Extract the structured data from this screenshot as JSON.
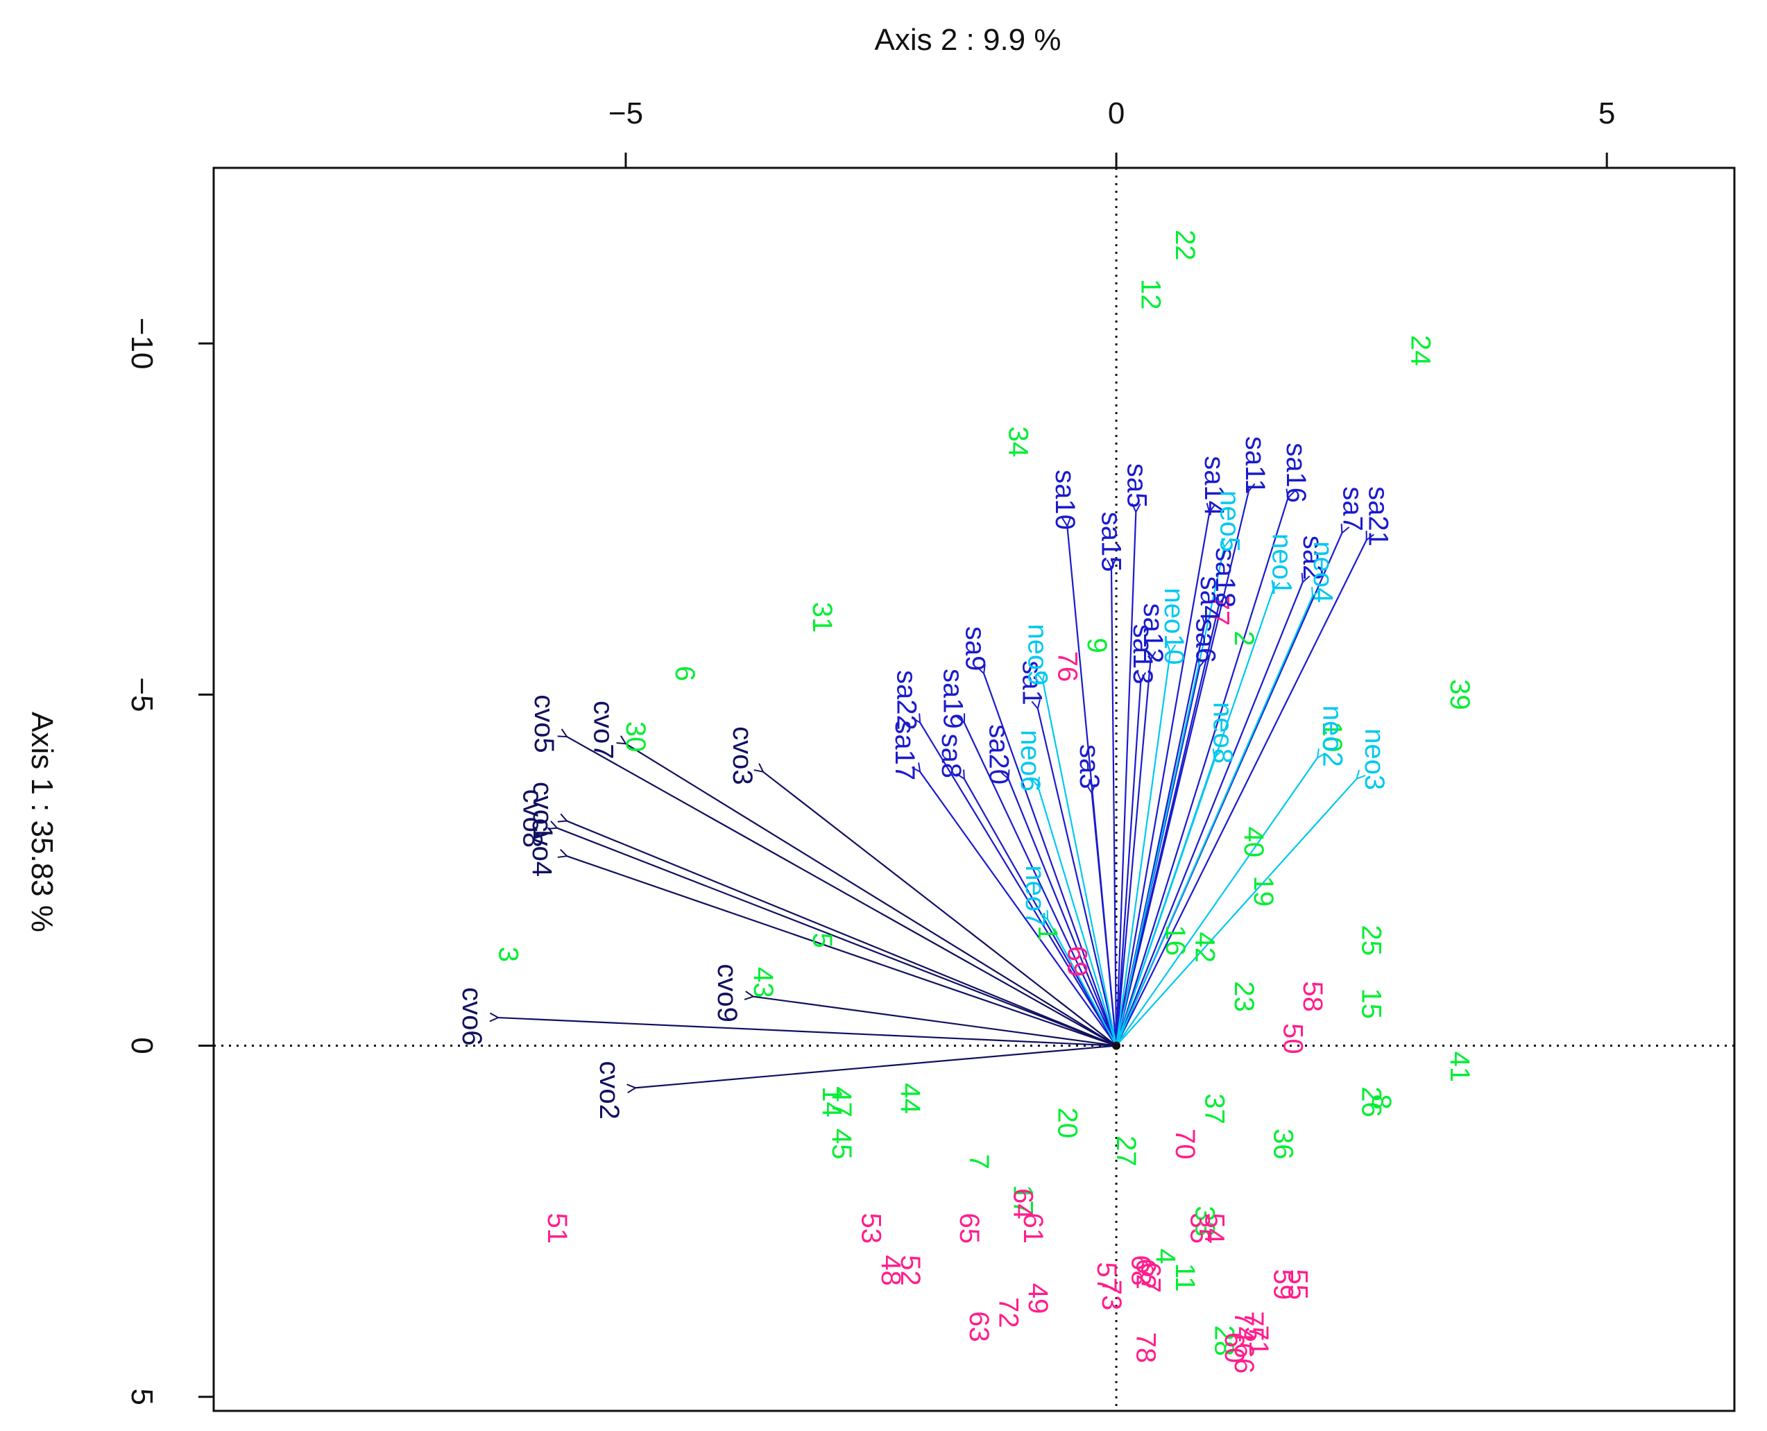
{
  "chart_data": {
    "type": "scatter",
    "subtype": "pca-biplot",
    "x_axis_title": "Axis 2 : 9.9 %",
    "y_axis_title": "Axis 1 : 35.83 %",
    "x_ticks": [
      {
        "value": -5,
        "label": "−5"
      },
      {
        "value": 0,
        "label": "0"
      },
      {
        "value": 5,
        "label": "5"
      }
    ],
    "y_ticks": [
      {
        "value": -10,
        "label": "−10"
      },
      {
        "value": -5,
        "label": "−5"
      },
      {
        "value": 0,
        "label": "0"
      },
      {
        "value": 5,
        "label": "5"
      }
    ],
    "xlim": [
      -9.2,
      6.3
    ],
    "ylim": [
      -12.5,
      5.2
    ],
    "y_inverted": true,
    "reference_lines": [
      {
        "axis": "x",
        "value": 0,
        "style": "dotted"
      },
      {
        "axis": "y",
        "value": 0,
        "style": "dotted"
      }
    ],
    "colors": {
      "group_green": "#00ee33",
      "group_pink": "#ff1e8c",
      "vector_cvo": "#101060",
      "vector_sa": "#1a1acc",
      "vector_neo": "#00c8f0",
      "axis": "#111111"
    },
    "points": [
      {
        "label": "22",
        "x": 0.7,
        "y": -11.4,
        "group": "green"
      },
      {
        "label": "12",
        "x": 0.35,
        "y": -10.7,
        "group": "green"
      },
      {
        "label": "24",
        "x": 3.1,
        "y": -9.9,
        "group": "green"
      },
      {
        "label": "34",
        "x": -1.0,
        "y": -8.6,
        "group": "green"
      },
      {
        "label": "31",
        "x": -3.0,
        "y": -6.1,
        "group": "green"
      },
      {
        "label": "6",
        "x": -4.4,
        "y": -5.3,
        "group": "green"
      },
      {
        "label": "30",
        "x": -4.9,
        "y": -4.4,
        "group": "green"
      },
      {
        "label": "39",
        "x": 3.5,
        "y": -5.0,
        "group": "green"
      },
      {
        "label": "10",
        "x": 2.2,
        "y": -4.4,
        "group": "green"
      },
      {
        "label": "2",
        "x": 1.3,
        "y": -5.8,
        "group": "green"
      },
      {
        "label": "9",
        "x": -0.2,
        "y": -5.7,
        "group": "green"
      },
      {
        "label": "40",
        "x": 1.4,
        "y": -2.9,
        "group": "green"
      },
      {
        "label": "19",
        "x": 1.5,
        "y": -2.2,
        "group": "green"
      },
      {
        "label": "25",
        "x": 2.6,
        "y": -1.5,
        "group": "green"
      },
      {
        "label": "42",
        "x": 0.9,
        "y": -1.4,
        "group": "green"
      },
      {
        "label": "16",
        "x": 0.6,
        "y": -1.5,
        "group": "green"
      },
      {
        "label": "1",
        "x": -0.7,
        "y": -1.6,
        "group": "green"
      },
      {
        "label": "3",
        "x": -6.2,
        "y": -1.3,
        "group": "green"
      },
      {
        "label": "5",
        "x": -3.0,
        "y": -1.5,
        "group": "green"
      },
      {
        "label": "43",
        "x": -3.6,
        "y": -0.9,
        "group": "green"
      },
      {
        "label": "23",
        "x": 1.3,
        "y": -0.7,
        "group": "green"
      },
      {
        "label": "15",
        "x": 2.6,
        "y": -0.6,
        "group": "green"
      },
      {
        "label": "41",
        "x": 3.5,
        "y": 0.3,
        "group": "green"
      },
      {
        "label": "26",
        "x": 2.6,
        "y": 0.8,
        "group": "green"
      },
      {
        "label": "8",
        "x": 2.7,
        "y": 0.8,
        "group": "green"
      },
      {
        "label": "47",
        "x": -2.8,
        "y": 0.8,
        "group": "green"
      },
      {
        "label": "14",
        "x": -2.9,
        "y": 0.8,
        "group": "green"
      },
      {
        "label": "44",
        "x": -2.1,
        "y": 0.75,
        "group": "green"
      },
      {
        "label": "37",
        "x": 1.0,
        "y": 0.9,
        "group": "green"
      },
      {
        "label": "20",
        "x": -0.5,
        "y": 1.1,
        "group": "green"
      },
      {
        "label": "36",
        "x": 1.7,
        "y": 1.4,
        "group": "green"
      },
      {
        "label": "45",
        "x": -2.8,
        "y": 1.4,
        "group": "green"
      },
      {
        "label": "27",
        "x": 0.1,
        "y": 1.5,
        "group": "green"
      },
      {
        "label": "7",
        "x": -1.4,
        "y": 1.65,
        "group": "green"
      },
      {
        "label": "17",
        "x": -0.95,
        "y": 2.2,
        "group": "green"
      },
      {
        "label": "33",
        "x": 0.9,
        "y": 2.5,
        "group": "green"
      },
      {
        "label": "11",
        "x": 0.7,
        "y": 3.3,
        "group": "green"
      },
      {
        "label": "28",
        "x": 1.1,
        "y": 4.2,
        "group": "green"
      },
      {
        "label": "4",
        "x": 0.5,
        "y": 3.0,
        "group": "green"
      },
      {
        "label": "76",
        "x": -0.5,
        "y": -5.4,
        "group": "pink"
      },
      {
        "label": "77",
        "x": 1.05,
        "y": -6.2,
        "group": "pink"
      },
      {
        "label": "58",
        "x": 2.0,
        "y": -0.7,
        "group": "pink"
      },
      {
        "label": "50",
        "x": 1.8,
        "y": -0.1,
        "group": "pink"
      },
      {
        "label": "69",
        "x": -0.4,
        "y": -1.2,
        "group": "pink"
      },
      {
        "label": "70",
        "x": 0.7,
        "y": 1.4,
        "group": "pink"
      },
      {
        "label": "51",
        "x": -5.7,
        "y": 2.6,
        "group": "pink"
      },
      {
        "label": "53",
        "x": -2.5,
        "y": 2.6,
        "group": "pink"
      },
      {
        "label": "65",
        "x": -1.5,
        "y": 2.6,
        "group": "pink"
      },
      {
        "label": "64",
        "x": -0.95,
        "y": 2.25,
        "group": "pink"
      },
      {
        "label": "61",
        "x": -0.85,
        "y": 2.6,
        "group": "pink"
      },
      {
        "label": "48",
        "x": -2.3,
        "y": 3.2,
        "group": "pink"
      },
      {
        "label": "52",
        "x": -2.1,
        "y": 3.2,
        "group": "pink"
      },
      {
        "label": "49",
        "x": -0.8,
        "y": 3.6,
        "group": "pink"
      },
      {
        "label": "72",
        "x": -1.1,
        "y": 3.8,
        "group": "pink"
      },
      {
        "label": "63",
        "x": -1.4,
        "y": 4.0,
        "group": "pink"
      },
      {
        "label": "57",
        "x": -0.1,
        "y": 3.3,
        "group": "pink"
      },
      {
        "label": "73",
        "x": -0.05,
        "y": 3.55,
        "group": "pink"
      },
      {
        "label": "68",
        "x": 0.25,
        "y": 3.2,
        "group": "pink"
      },
      {
        "label": "62",
        "x": 0.3,
        "y": 3.25,
        "group": "pink"
      },
      {
        "label": "67",
        "x": 0.35,
        "y": 3.3,
        "group": "pink"
      },
      {
        "label": "78",
        "x": 0.3,
        "y": 4.3,
        "group": "pink"
      },
      {
        "label": "35",
        "x": 0.85,
        "y": 2.6,
        "group": "pink"
      },
      {
        "label": "54",
        "x": 1.0,
        "y": 2.6,
        "group": "pink"
      },
      {
        "label": "59",
        "x": 1.7,
        "y": 3.4,
        "group": "pink"
      },
      {
        "label": "55",
        "x": 1.85,
        "y": 3.4,
        "group": "pink"
      },
      {
        "label": "74",
        "x": 1.3,
        "y": 4.0,
        "group": "pink"
      },
      {
        "label": "75",
        "x": 1.4,
        "y": 4.0,
        "group": "pink"
      },
      {
        "label": "60",
        "x": 1.2,
        "y": 4.3,
        "group": "pink"
      },
      {
        "label": "66",
        "x": 1.3,
        "y": 4.45,
        "group": "pink"
      },
      {
        "label": "71",
        "x": 1.45,
        "y": 4.2,
        "group": "pink"
      }
    ],
    "vectors": [
      {
        "label": "cvo1",
        "x": -5.6,
        "y": -3.2,
        "group": "cvo"
      },
      {
        "label": "cvo2",
        "x": -4.9,
        "y": 0.6,
        "group": "cvo"
      },
      {
        "label": "cvo3",
        "x": -3.6,
        "y": -3.9,
        "group": "cvo"
      },
      {
        "label": "cvo4",
        "x": -5.6,
        "y": -2.7,
        "group": "cvo"
      },
      {
        "label": "cvo5",
        "x": -5.6,
        "y": -4.4,
        "group": "cvo"
      },
      {
        "label": "cvo6",
        "x": -6.3,
        "y": -0.4,
        "group": "cvo"
      },
      {
        "label": "cvo7",
        "x": -5.0,
        "y": -4.3,
        "group": "cvo"
      },
      {
        "label": "cvo8",
        "x": -5.7,
        "y": -3.1,
        "group": "cvo"
      },
      {
        "label": "cvo9",
        "x": -3.7,
        "y": -0.7,
        "group": "cvo"
      },
      {
        "label": "sa1",
        "x": -0.8,
        "y": -4.8,
        "group": "sa"
      },
      {
        "label": "sa2",
        "x": 1.9,
        "y": -6.6,
        "group": "sa"
      },
      {
        "label": "sa3",
        "x": -0.25,
        "y": -3.6,
        "group": "sa"
      },
      {
        "label": "sa4",
        "x": 0.9,
        "y": -6.0,
        "group": "sa"
      },
      {
        "label": "sa5",
        "x": 0.2,
        "y": -7.6,
        "group": "sa"
      },
      {
        "label": "sa6",
        "x": 0.85,
        "y": -5.4,
        "group": "sa"
      },
      {
        "label": "sa7",
        "x": 2.3,
        "y": -7.3,
        "group": "sa"
      },
      {
        "label": "sa8",
        "x": -1.55,
        "y": -3.8,
        "group": "sa"
      },
      {
        "label": "sa9",
        "x": -1.35,
        "y": -5.3,
        "group": "sa"
      },
      {
        "label": "sa10",
        "x": -0.5,
        "y": -7.4,
        "group": "sa"
      },
      {
        "label": "sa11",
        "x": 1.35,
        "y": -7.9,
        "group": "sa"
      },
      {
        "label": "sa12",
        "x": 0.35,
        "y": -5.5,
        "group": "sa"
      },
      {
        "label": "sa13",
        "x": 0.25,
        "y": -5.2,
        "group": "sa"
      },
      {
        "label": "sa14",
        "x": 0.95,
        "y": -7.6,
        "group": "sa"
      },
      {
        "label": "sa15",
        "x": -0.05,
        "y": -6.8,
        "group": "sa"
      },
      {
        "label": "sa16",
        "x": 1.75,
        "y": -7.8,
        "group": "sa"
      },
      {
        "label": "sa17",
        "x": -2.0,
        "y": -3.9,
        "group": "sa"
      },
      {
        "label": "sa18",
        "x": 1.05,
        "y": -6.3,
        "group": "sa"
      },
      {
        "label": "sa19",
        "x": -1.55,
        "y": -4.6,
        "group": "sa"
      },
      {
        "label": "sa20",
        "x": -1.1,
        "y": -3.8,
        "group": "sa"
      },
      {
        "label": "sa21",
        "x": 2.55,
        "y": -7.2,
        "group": "sa"
      },
      {
        "label": "sa22",
        "x": -2.0,
        "y": -4.6,
        "group": "sa"
      },
      {
        "label": "neo1",
        "x": 1.6,
        "y": -6.5,
        "group": "neo"
      },
      {
        "label": "neo2",
        "x": 2.05,
        "y": -4.1,
        "group": "neo"
      },
      {
        "label": "neo3",
        "x": 2.45,
        "y": -3.8,
        "group": "neo"
      },
      {
        "label": "neo4",
        "x": 2.0,
        "y": -6.4,
        "group": "neo"
      },
      {
        "label": "neo5",
        "x": 1.1,
        "y": -7.1,
        "group": "neo"
      },
      {
        "label": "neo6",
        "x": -0.8,
        "y": -3.7,
        "group": "neo"
      },
      {
        "label": "neo7",
        "x": -0.7,
        "y": -1.8,
        "group": "neo"
      },
      {
        "label": "neo8",
        "x": 1.0,
        "y": -4.1,
        "group": "neo"
      },
      {
        "label": "neo9",
        "x": -0.75,
        "y": -5.2,
        "group": "neo"
      },
      {
        "label": "neo10",
        "x": 0.55,
        "y": -5.6,
        "group": "neo"
      }
    ]
  }
}
